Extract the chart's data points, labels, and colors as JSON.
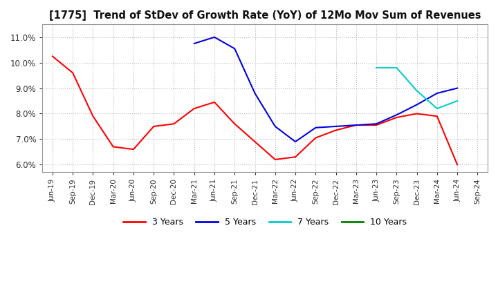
{
  "title": "[1775]  Trend of StDev of Growth Rate (YoY) of 12Mo Mov Sum of Revenues",
  "ylim": [
    0.057,
    0.115
  ],
  "yticks": [
    0.06,
    0.07,
    0.08,
    0.09,
    0.1,
    0.11
  ],
  "background_color": "#ffffff",
  "grid_color": "#bbbbbb",
  "series": {
    "3 Years": {
      "color": "#ff0000",
      "data": [
        [
          "Jun-19",
          0.1025
        ],
        [
          "Sep-19",
          0.096
        ],
        [
          "Dec-19",
          0.079
        ],
        [
          "Mar-20",
          0.067
        ],
        [
          "Jun-20",
          0.066
        ],
        [
          "Sep-20",
          0.075
        ],
        [
          "Dec-20",
          0.076
        ],
        [
          "Mar-21",
          0.082
        ],
        [
          "Jun-21",
          0.0845
        ],
        [
          "Sep-21",
          0.076
        ],
        [
          "Dec-21",
          0.069
        ],
        [
          "Mar-22",
          0.062
        ],
        [
          "Jun-22",
          0.063
        ],
        [
          "Sep-22",
          0.0705
        ],
        [
          "Dec-22",
          0.0735
        ],
        [
          "Mar-23",
          0.0755
        ],
        [
          "Jun-23",
          0.0755
        ],
        [
          "Sep-23",
          0.0785
        ],
        [
          "Dec-23",
          0.08
        ],
        [
          "Mar-24",
          0.079
        ],
        [
          "Jun-24",
          0.06
        ]
      ]
    },
    "5 Years": {
      "color": "#0000dd",
      "data": [
        [
          "Mar-21",
          0.1075
        ],
        [
          "Jun-21",
          0.11
        ],
        [
          "Sep-21",
          0.1055
        ],
        [
          "Dec-21",
          0.088
        ],
        [
          "Mar-22",
          0.075
        ],
        [
          "Jun-22",
          0.069
        ],
        [
          "Sep-22",
          0.0745
        ],
        [
          "Dec-22",
          0.075
        ],
        [
          "Mar-23",
          0.0755
        ],
        [
          "Jun-23",
          0.076
        ],
        [
          "Sep-23",
          0.0795
        ],
        [
          "Dec-23",
          0.0835
        ],
        [
          "Mar-24",
          0.088
        ],
        [
          "Jun-24",
          0.09
        ]
      ]
    },
    "7 Years": {
      "color": "#00cccc",
      "data": [
        [
          "Jun-23",
          0.098
        ],
        [
          "Sep-23",
          0.098
        ],
        [
          "Dec-23",
          0.089
        ],
        [
          "Mar-24",
          0.082
        ],
        [
          "Jun-24",
          0.085
        ]
      ]
    },
    "10 Years": {
      "color": "#008000",
      "data": []
    }
  },
  "x_labels": [
    "Jun-19",
    "Sep-19",
    "Dec-19",
    "Mar-20",
    "Jun-20",
    "Sep-20",
    "Dec-20",
    "Mar-21",
    "Jun-21",
    "Sep-21",
    "Dec-21",
    "Mar-22",
    "Jun-22",
    "Sep-22",
    "Dec-22",
    "Mar-23",
    "Jun-23",
    "Sep-23",
    "Dec-23",
    "Mar-24",
    "Jun-24",
    "Sep-24"
  ]
}
